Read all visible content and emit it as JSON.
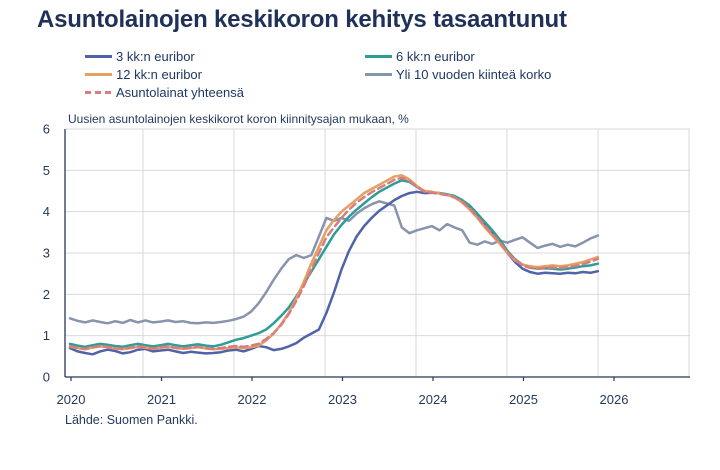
{
  "title": "Asuntolainojen keskikoron kehitys tasaantunut",
  "source": "Lähde: Suomen Pankki.",
  "colors": {
    "title_text": "#1F3158",
    "axis": "#26365B",
    "tick_text": "#243A5E",
    "grid": "#D9D9D9",
    "blue": "#5063A8",
    "teal": "#2E9D96",
    "orange": "#E5A063",
    "gray": "#8794AD",
    "salmon": "#D97C80"
  },
  "chart_data": {
    "type": "line",
    "title": "Uusien asuntolainojen keskikorot koron kiinnitysajan mukaan, %",
    "xlabel": "",
    "ylabel": "",
    "ylim": [
      0,
      6
    ],
    "y_ticks": [
      0,
      1,
      2,
      3,
      4,
      5,
      6
    ],
    "x_ticks": [
      "2020",
      "2021",
      "2022",
      "2023",
      "2024",
      "2025",
      "2026"
    ],
    "x_start": "2020-01",
    "x_end": "2025-11",
    "frequency": "monthly",
    "grid": "on",
    "legend_position": "top-left",
    "series": [
      {
        "id": "3kk-euribor",
        "name": "3 kk:n euribor",
        "color": "#5063A8",
        "dashed": false,
        "values": [
          0.7,
          0.62,
          0.58,
          0.55,
          0.62,
          0.66,
          0.63,
          0.57,
          0.6,
          0.66,
          0.68,
          0.62,
          0.64,
          0.66,
          0.62,
          0.58,
          0.61,
          0.59,
          0.57,
          0.58,
          0.6,
          0.64,
          0.66,
          0.62,
          0.68,
          0.75,
          0.72,
          0.65,
          0.68,
          0.74,
          0.82,
          0.95,
          1.05,
          1.15,
          1.55,
          2.05,
          2.6,
          3.05,
          3.4,
          3.65,
          3.85,
          4.02,
          4.15,
          4.28,
          4.38,
          4.45,
          4.48,
          4.45,
          4.46,
          4.45,
          4.42,
          4.36,
          4.26,
          4.12,
          3.92,
          3.7,
          3.48,
          3.25,
          3.0,
          2.78,
          2.62,
          2.54,
          2.5,
          2.52,
          2.51,
          2.5,
          2.52,
          2.51,
          2.54,
          2.52,
          2.56
        ]
      },
      {
        "id": "6kk-euribor",
        "name": "6 kk:n euribor",
        "color": "#2E9D96",
        "dashed": false,
        "values": [
          0.8,
          0.76,
          0.73,
          0.77,
          0.8,
          0.78,
          0.75,
          0.73,
          0.77,
          0.8,
          0.77,
          0.74,
          0.77,
          0.8,
          0.77,
          0.74,
          0.77,
          0.79,
          0.76,
          0.74,
          0.78,
          0.84,
          0.9,
          0.94,
          1.0,
          1.06,
          1.15,
          1.3,
          1.48,
          1.68,
          1.95,
          2.25,
          2.55,
          2.85,
          3.15,
          3.45,
          3.68,
          3.88,
          4.05,
          4.2,
          4.35,
          4.48,
          4.58,
          4.68,
          4.76,
          4.72,
          4.6,
          4.5,
          4.47,
          4.45,
          4.42,
          4.38,
          4.28,
          4.15,
          3.95,
          3.75,
          3.55,
          3.32,
          3.05,
          2.85,
          2.72,
          2.65,
          2.62,
          2.63,
          2.62,
          2.6,
          2.62,
          2.65,
          2.68,
          2.7,
          2.74
        ]
      },
      {
        "id": "12kk-euribor",
        "name": "12 kk:n euribor",
        "color": "#E5A063",
        "dashed": false,
        "values": [
          0.73,
          0.7,
          0.67,
          0.71,
          0.74,
          0.72,
          0.69,
          0.67,
          0.7,
          0.73,
          0.71,
          0.68,
          0.71,
          0.73,
          0.7,
          0.68,
          0.7,
          0.72,
          0.69,
          0.67,
          0.68,
          0.7,
          0.72,
          0.7,
          0.72,
          0.76,
          0.88,
          1.05,
          1.28,
          1.55,
          1.9,
          2.3,
          2.75,
          3.15,
          3.55,
          3.8,
          4.0,
          4.15,
          4.3,
          4.45,
          4.55,
          4.65,
          4.75,
          4.85,
          4.88,
          4.78,
          4.62,
          4.5,
          4.48,
          4.44,
          4.4,
          4.35,
          4.22,
          4.05,
          3.85,
          3.62,
          3.42,
          3.22,
          3.0,
          2.82,
          2.72,
          2.68,
          2.66,
          2.68,
          2.7,
          2.68,
          2.7,
          2.74,
          2.78,
          2.84,
          2.9
        ]
      },
      {
        "id": "yli-10v-kiintea-korko",
        "name": "Yli 10 vuoden kiinteä korko",
        "color": "#8794AD",
        "dashed": false,
        "values": [
          1.42,
          1.36,
          1.32,
          1.37,
          1.33,
          1.3,
          1.35,
          1.31,
          1.38,
          1.32,
          1.37,
          1.32,
          1.34,
          1.37,
          1.33,
          1.35,
          1.31,
          1.3,
          1.32,
          1.31,
          1.33,
          1.36,
          1.4,
          1.46,
          1.58,
          1.78,
          2.05,
          2.35,
          2.62,
          2.85,
          2.95,
          2.88,
          2.95,
          3.4,
          3.85,
          3.78,
          3.85,
          3.78,
          3.95,
          4.08,
          4.18,
          4.25,
          4.2,
          4.15,
          3.62,
          3.48,
          3.55,
          3.6,
          3.65,
          3.55,
          3.7,
          3.62,
          3.55,
          3.25,
          3.2,
          3.28,
          3.22,
          3.3,
          3.25,
          3.32,
          3.38,
          3.25,
          3.12,
          3.18,
          3.22,
          3.15,
          3.2,
          3.16,
          3.25,
          3.35,
          3.42
        ]
      },
      {
        "id": "asuntolainat-yhteensa",
        "name": "Asuntolainat yhteensä",
        "color": "#D97C80",
        "dashed": true,
        "values": [
          0.74,
          0.71,
          0.68,
          0.72,
          0.75,
          0.73,
          0.7,
          0.68,
          0.71,
          0.74,
          0.72,
          0.69,
          0.72,
          0.74,
          0.71,
          0.69,
          0.71,
          0.73,
          0.7,
          0.68,
          0.7,
          0.73,
          0.75,
          0.73,
          0.76,
          0.8,
          0.92,
          1.06,
          1.26,
          1.52,
          1.84,
          2.2,
          2.6,
          3.0,
          3.38,
          3.62,
          3.85,
          4.05,
          4.22,
          4.35,
          4.47,
          4.57,
          4.67,
          4.77,
          4.82,
          4.74,
          4.6,
          4.48,
          4.46,
          4.43,
          4.4,
          4.34,
          4.24,
          4.08,
          3.88,
          3.66,
          3.46,
          3.26,
          3.02,
          2.84,
          2.7,
          2.64,
          2.62,
          2.64,
          2.65,
          2.64,
          2.66,
          2.69,
          2.73,
          2.79,
          2.86
        ]
      }
    ]
  }
}
